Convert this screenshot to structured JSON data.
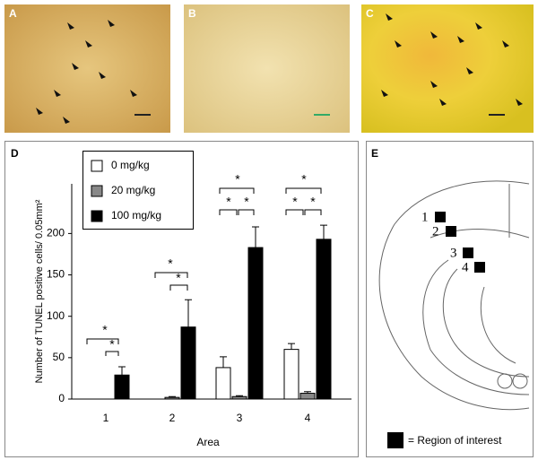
{
  "panels": {
    "a": "A",
    "b": "B",
    "c": "C",
    "d": "D",
    "e": "E"
  },
  "chart_data": {
    "type": "bar",
    "y_label": "Number of TUNEL positive cells/ 0.05mm²",
    "x_label": "Area",
    "categories": [
      "1",
      "2",
      "3",
      "4"
    ],
    "series": [
      {
        "name": "0 mg/kg",
        "color": "#ffffff",
        "values": [
          0,
          0,
          38,
          60
        ],
        "errors": [
          0,
          0,
          13,
          7
        ]
      },
      {
        "name": "20 mg/kg",
        "color": "#888888",
        "values": [
          0,
          2,
          3,
          7
        ],
        "errors": [
          0,
          1,
          1,
          2
        ]
      },
      {
        "name": "100 mg/kg",
        "color": "#000000",
        "values": [
          29,
          87,
          183,
          193
        ],
        "errors": [
          10,
          33,
          25,
          17
        ]
      }
    ],
    "ylim": [
      0,
      260
    ],
    "yticks": [
      0,
      50,
      100,
      150,
      200
    ],
    "annotations": [
      "*",
      "*",
      "*",
      "*",
      "*",
      "*",
      "*",
      "*",
      "*",
      "*"
    ]
  },
  "diagram": {
    "regions": [
      "1",
      "2",
      "3",
      "4"
    ],
    "legend": "= Region of interest"
  }
}
